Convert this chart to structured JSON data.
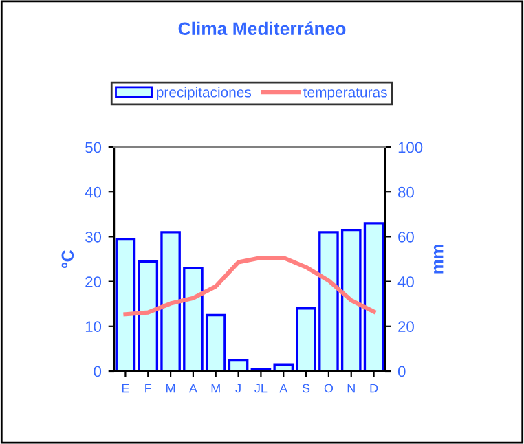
{
  "chart_data": {
    "type": "bar",
    "title": "Clima Mediterráneo",
    "ylabel": "ºC",
    "y2label": "mm",
    "categories": [
      "E",
      "F",
      "M",
      "A",
      "M",
      "J",
      "JL",
      "A",
      "S",
      "O",
      "N",
      "D"
    ],
    "series": [
      {
        "name": "precipitaciones",
        "axis": "y2",
        "color": "#ccffff",
        "values": [
          59,
          49,
          62,
          46,
          25,
          5,
          1,
          3,
          28,
          62,
          63,
          66
        ]
      },
      {
        "name": "temperaturas",
        "type": "line",
        "axis": "y",
        "color": "#ff8080",
        "values": [
          12.7,
          13.1,
          15.1,
          16.3,
          18.9,
          24.3,
          25.3,
          25.3,
          23.2,
          20.2,
          15.8,
          13.3
        ]
      }
    ],
    "ylim": [
      0,
      50
    ],
    "yticks": [
      0,
      10,
      20,
      30,
      40,
      50
    ],
    "y2lim": [
      0,
      100
    ],
    "y2ticks": [
      0,
      20,
      40,
      60,
      80,
      100
    ],
    "grid": false,
    "legend": "top",
    "marker": "none",
    "line_style": "solid"
  }
}
